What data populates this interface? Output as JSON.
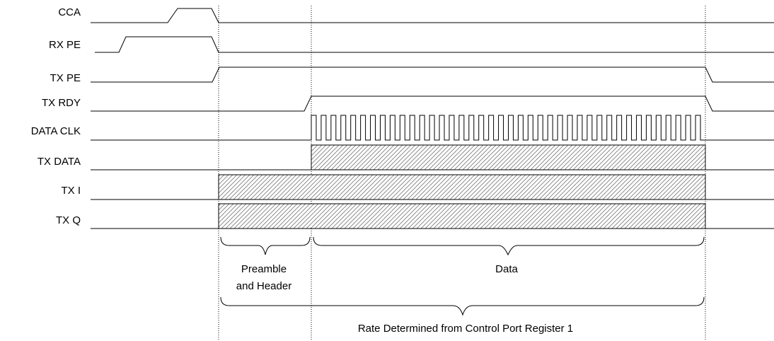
{
  "signals": [
    {
      "id": "cca",
      "label": "CCA"
    },
    {
      "id": "rx-pe",
      "label": "RX PE"
    },
    {
      "id": "tx-pe",
      "label": "TX PE"
    },
    {
      "id": "tx-rdy",
      "label": "TX RDY"
    },
    {
      "id": "data-clk",
      "label": "DATA CLK"
    },
    {
      "id": "tx-data",
      "label": "TX DATA"
    },
    {
      "id": "tx-i",
      "label": "TX I"
    },
    {
      "id": "tx-q",
      "label": "TX Q"
    }
  ],
  "annotations": {
    "preamble_line1": "Preamble",
    "preamble_line2": "and Header",
    "data": "Data",
    "rate": "Rate Determined from Control Port Register 1"
  }
}
